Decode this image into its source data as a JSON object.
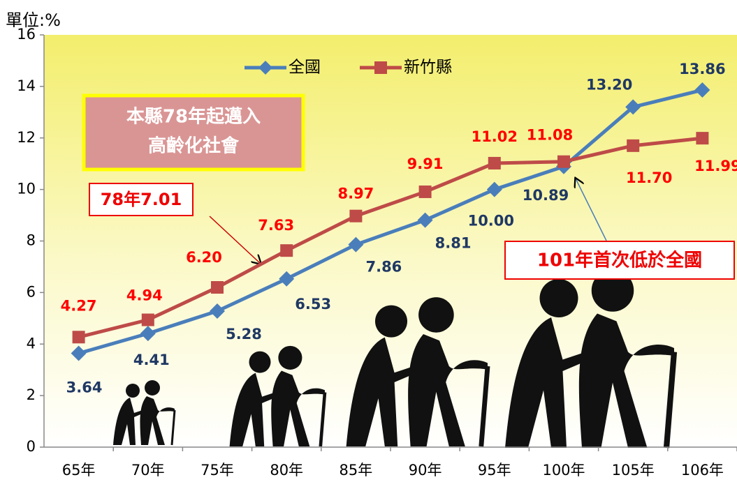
{
  "chart_data": {
    "type": "line",
    "y_label": "單位:%",
    "categories": [
      "65年",
      "70年",
      "75年",
      "80年",
      "85年",
      "90年",
      "95年",
      "100年",
      "105年",
      "106年"
    ],
    "series": [
      {
        "name": "全國",
        "color": "#4a7ebb",
        "values": [
          3.64,
          4.41,
          5.28,
          6.53,
          7.86,
          8.81,
          10.0,
          10.89,
          13.2,
          13.86
        ],
        "value_labels": [
          "3.64",
          "4.41",
          "5.28",
          "6.53",
          "7.86",
          "8.81",
          "10.00",
          "10.89",
          "13.20",
          "13.86"
        ]
      },
      {
        "name": "新竹縣",
        "color": "#be4b48",
        "values": [
          4.27,
          4.94,
          6.2,
          7.63,
          8.97,
          9.91,
          11.02,
          11.08,
          11.7,
          11.99
        ],
        "value_labels": [
          "4.27",
          "4.94",
          "6.20",
          "7.63",
          "8.97",
          "9.91",
          "11.02",
          "11.08",
          "11.70",
          "11.99"
        ]
      }
    ],
    "ylim": [
      0,
      16
    ],
    "yticks": [
      0,
      2,
      4,
      6,
      8,
      10,
      12,
      14,
      16
    ],
    "grid": false,
    "annotations": [
      "本縣78年起邁入",
      "高齡化社會",
      "78年7.01",
      "101年首次低於全國"
    ]
  }
}
